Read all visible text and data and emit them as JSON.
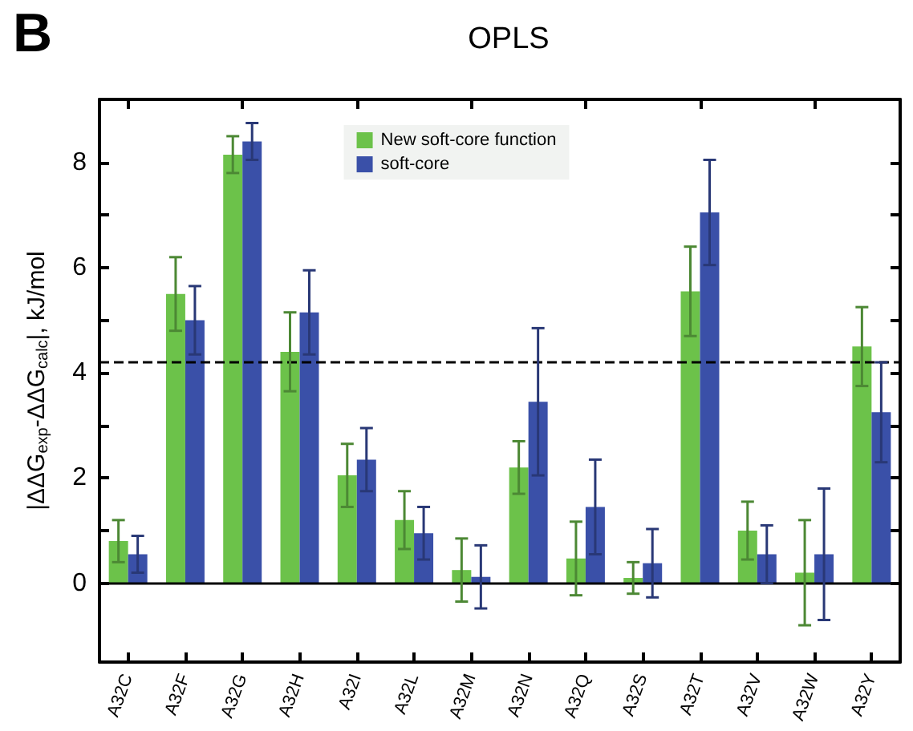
{
  "chart_data": {
    "type": "bar",
    "title": "OPLS",
    "ylabel": "|ΔΔG$_{exp}$-ΔΔG$_{calc}$|, kJ/mol",
    "annotations": [
      "B"
    ],
    "categories": [
      "A32C",
      "A32F",
      "A32G",
      "A32H",
      "A32I",
      "A32L",
      "A32M",
      "A32N",
      "A32Q",
      "A32S",
      "A32T",
      "A32V",
      "A32W",
      "A32Y"
    ],
    "series": [
      {
        "name": "New soft-core function",
        "color": "#6cc24a",
        "values": [
          0.8,
          5.5,
          8.15,
          4.4,
          2.05,
          1.2,
          0.25,
          2.2,
          0.47,
          0.1,
          5.55,
          1.0,
          0.2,
          4.5
        ],
        "errors": [
          0.4,
          0.7,
          0.35,
          0.75,
          0.6,
          0.55,
          0.6,
          0.5,
          0.7,
          0.3,
          0.85,
          0.55,
          1.0,
          0.75
        ]
      },
      {
        "name": "soft-core",
        "color": "#3a50a8",
        "values": [
          0.55,
          5.0,
          8.4,
          5.15,
          2.35,
          0.95,
          0.12,
          3.45,
          1.45,
          0.38,
          7.05,
          0.55,
          0.55,
          3.25
        ],
        "errors": [
          0.35,
          0.65,
          0.35,
          0.8,
          0.6,
          0.5,
          0.6,
          1.4,
          0.9,
          0.65,
          1.0,
          0.55,
          1.25,
          0.95
        ]
      }
    ],
    "ylim": [
      -1.5,
      9.2
    ],
    "yticks": [
      0,
      {
        "value": 1,
        "label": null
      },
      2,
      {
        "value": 3,
        "label": null
      },
      4,
      {
        "value": 5,
        "label": null
      },
      6,
      {
        "value": 7,
        "label": null
      },
      8
    ],
    "ref_lines": [
      {
        "axis": "y",
        "value": 4.2,
        "color": "#000000",
        "line_style": "dashed"
      },
      {
        "axis": "y",
        "value": 0,
        "color": "#000000",
        "line_style": "solid"
      }
    ],
    "legend": "top"
  }
}
